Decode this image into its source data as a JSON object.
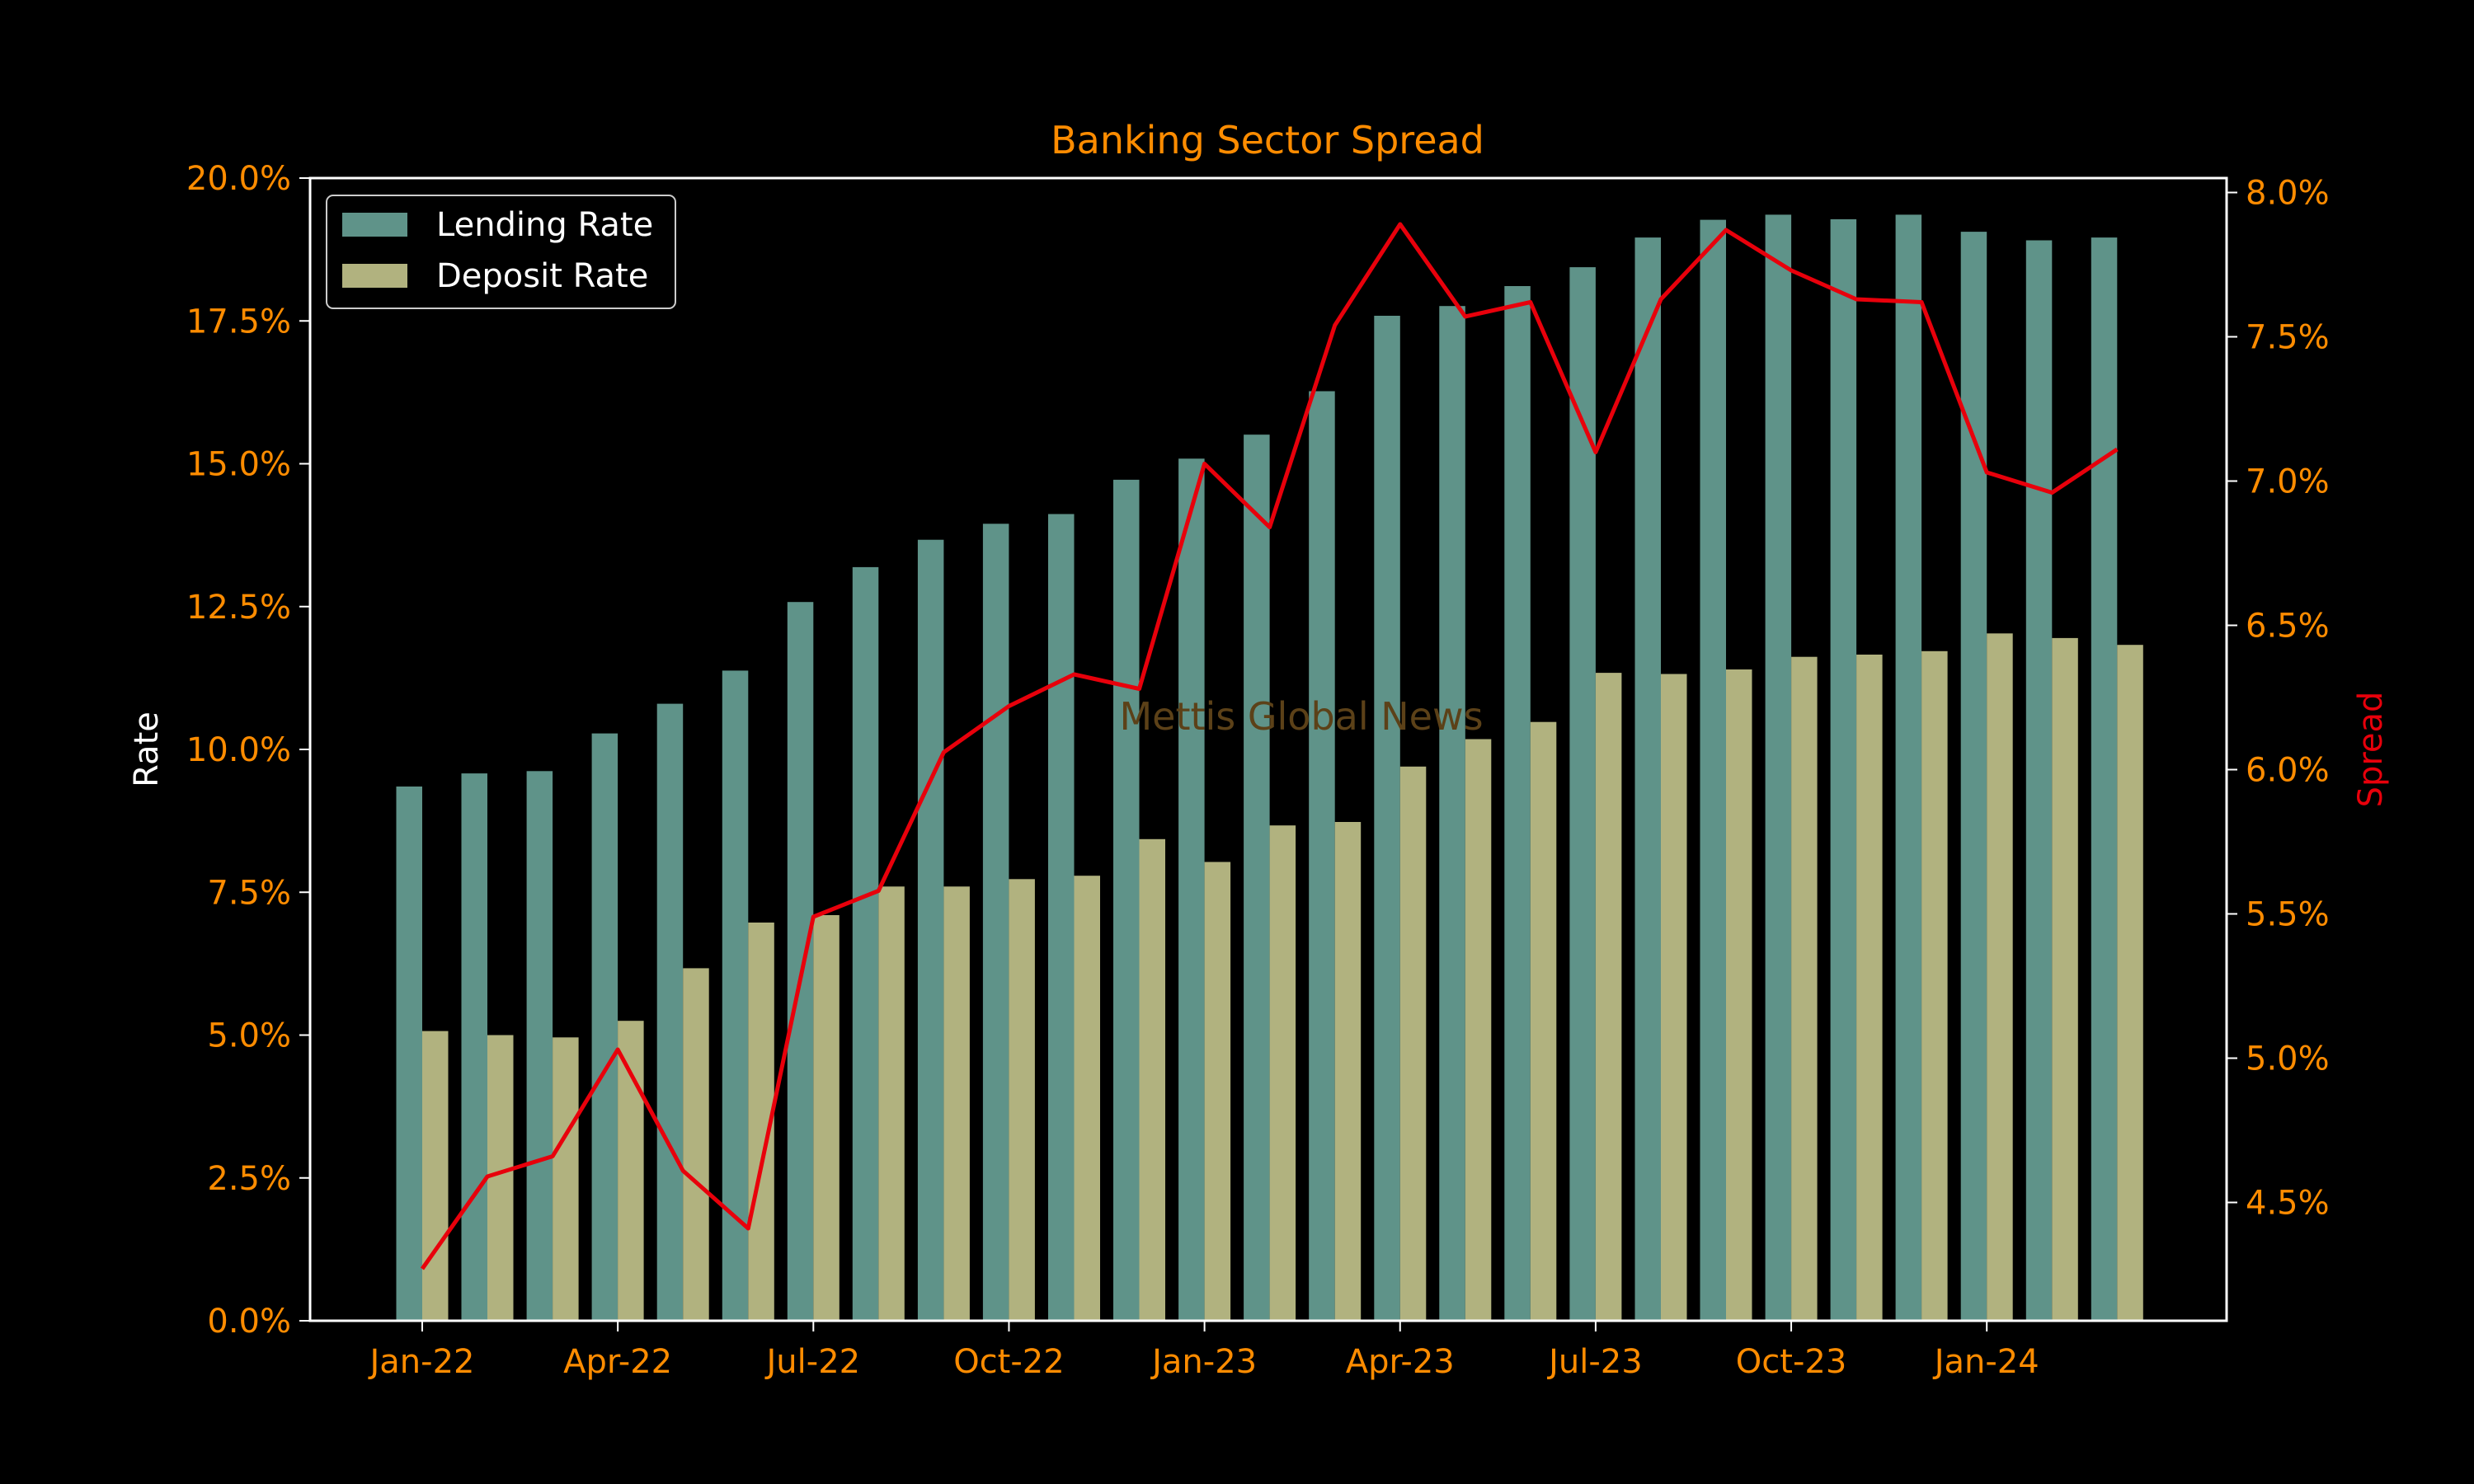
{
  "chart_data": {
    "type": "bar",
    "title": "Banking Sector Spread",
    "ylabel": "Rate",
    "y2label": "Spread",
    "watermark": "Mettis Global News",
    "months": [
      "Jan-22",
      "Feb-22",
      "Mar-22",
      "Apr-22",
      "May-22",
      "Jun-22",
      "Jul-22",
      "Aug-22",
      "Sep-22",
      "Oct-22",
      "Nov-22",
      "Dec-22",
      "Jan-23",
      "Feb-23",
      "Mar-23",
      "Apr-23",
      "May-23",
      "Jun-23",
      "Jul-23",
      "Aug-23",
      "Sep-23",
      "Oct-23",
      "Nov-23",
      "Dec-23",
      "Jan-24",
      "Feb-24",
      "Mar-24"
    ],
    "x_tick_labels": [
      "Jan-22",
      "Apr-22",
      "Jul-22",
      "Oct-22",
      "Jan-23",
      "Apr-23",
      "Jul-23",
      "Oct-23",
      "Jan-24"
    ],
    "series": [
      {
        "name": "Lending Rate",
        "axis": "left",
        "kind": "bar",
        "color": "#5f9389",
        "values": [
          9.35,
          9.58,
          9.62,
          10.28,
          10.8,
          11.38,
          12.58,
          13.19,
          13.67,
          13.95,
          14.12,
          14.72,
          15.09,
          15.51,
          16.27,
          17.59,
          17.76,
          18.11,
          18.44,
          18.96,
          19.27,
          19.36,
          19.28,
          19.36,
          19.06,
          18.91,
          18.96
        ]
      },
      {
        "name": "Deposit Rate",
        "axis": "left",
        "kind": "bar",
        "color": "#b1b27f",
        "values": [
          5.07,
          5.0,
          4.96,
          5.25,
          6.17,
          6.97,
          7.1,
          7.6,
          7.6,
          7.73,
          7.79,
          8.43,
          8.03,
          8.67,
          8.73,
          9.7,
          10.18,
          10.48,
          11.34,
          11.32,
          11.4,
          11.62,
          11.66,
          11.72,
          12.03,
          11.95,
          11.83
        ]
      },
      {
        "name": "Spread",
        "axis": "right",
        "kind": "line",
        "color": "#e8000b",
        "values": [
          4.27,
          4.59,
          4.66,
          5.03,
          4.61,
          4.41,
          5.49,
          5.58,
          6.06,
          6.22,
          6.33,
          6.28,
          7.06,
          6.84,
          7.54,
          7.89,
          7.57,
          7.62,
          7.1,
          7.63,
          7.87,
          7.73,
          7.63,
          7.62,
          7.03,
          6.96,
          7.11
        ]
      }
    ],
    "ylim": [
      0,
      20
    ],
    "y_ticks": [
      "0.0%",
      "2.5%",
      "5.0%",
      "7.5%",
      "10.0%",
      "12.5%",
      "15.0%",
      "17.5%",
      "20.0%"
    ],
    "y2lim": [
      4.09,
      8.05
    ],
    "y2_ticks": [
      "4.5%",
      "5.0%",
      "5.5%",
      "6.0%",
      "6.5%",
      "7.0%",
      "7.5%",
      "8.0%"
    ],
    "legend": "top-left",
    "grid": false,
    "colors": {
      "background": "#000000",
      "tick_text": "#ff8c00",
      "title": "#ff8c00",
      "axes": "#ffffff",
      "ylabel": "#ffffff",
      "y2label": "#e8000b",
      "watermark": "#5c4118"
    }
  }
}
